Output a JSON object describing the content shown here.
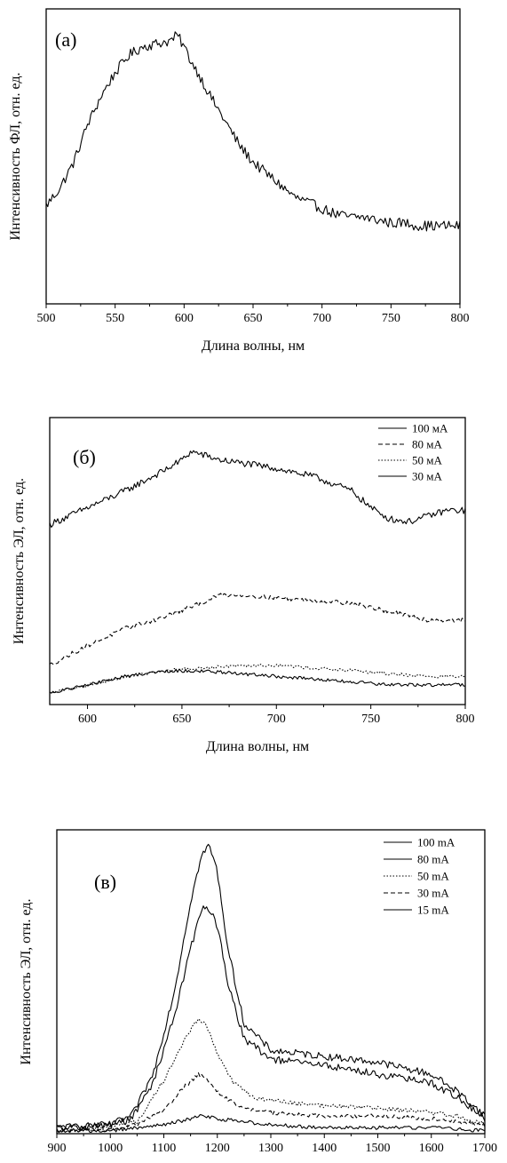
{
  "chart_data": [
    {
      "type": "line",
      "panel_label": "(а)",
      "xlabel": "Длина волны, нм",
      "ylabel": "Интенсивность ФЛ, отн. ед.",
      "xlim": [
        500,
        800
      ],
      "ylim": [
        0,
        1.0
      ],
      "xticks": [
        500,
        550,
        600,
        650,
        700,
        750,
        800
      ],
      "grid": false,
      "legend": "none",
      "series": [
        {
          "style": "solid",
          "noise": 0.018,
          "x": [
            500,
            510,
            520,
            530,
            540,
            550,
            560,
            570,
            580,
            590,
            595,
            600,
            605,
            610,
            620,
            630,
            640,
            650,
            660,
            670,
            680,
            690,
            700,
            710,
            720,
            730,
            740,
            750,
            760,
            770,
            780,
            790,
            800
          ],
          "values": [
            0.34,
            0.4,
            0.49,
            0.62,
            0.72,
            0.8,
            0.86,
            0.89,
            0.9,
            0.91,
            0.93,
            0.89,
            0.84,
            0.8,
            0.71,
            0.63,
            0.55,
            0.49,
            0.45,
            0.41,
            0.37,
            0.35,
            0.33,
            0.31,
            0.3,
            0.3,
            0.29,
            0.28,
            0.28,
            0.27,
            0.27,
            0.27,
            0.27
          ]
        }
      ]
    },
    {
      "type": "line",
      "panel_label": "(б)",
      "xlabel": "Длина волны, нм",
      "ylabel": "Интенсивность ЭЛ, отн. ед.",
      "xlim": [
        580,
        800
      ],
      "ylim": [
        0,
        1.0
      ],
      "xticks": [
        600,
        650,
        700,
        750,
        800
      ],
      "grid": false,
      "legend": "top-right",
      "series": [
        {
          "name": "100 мА",
          "style": "solid",
          "noise": 0.012,
          "x": [
            580,
            600,
            620,
            640,
            650,
            655,
            660,
            670,
            680,
            700,
            720,
            740,
            750,
            760,
            770,
            780,
            790,
            800
          ],
          "values": [
            0.64,
            0.7,
            0.76,
            0.83,
            0.87,
            0.9,
            0.89,
            0.87,
            0.86,
            0.84,
            0.81,
            0.76,
            0.7,
            0.66,
            0.65,
            0.67,
            0.69,
            0.69
          ]
        },
        {
          "name": "80 мА",
          "style": "dashed",
          "noise": 0.008,
          "x": [
            580,
            600,
            620,
            640,
            660,
            670,
            680,
            700,
            720,
            740,
            760,
            780,
            800
          ],
          "values": [
            0.14,
            0.21,
            0.27,
            0.31,
            0.36,
            0.39,
            0.39,
            0.38,
            0.37,
            0.36,
            0.33,
            0.3,
            0.3
          ]
        },
        {
          "name": "50 мА",
          "style": "dotted",
          "noise": 0.006,
          "x": [
            580,
            600,
            620,
            640,
            660,
            680,
            700,
            720,
            740,
            760,
            780,
            800
          ],
          "values": [
            0.04,
            0.07,
            0.1,
            0.12,
            0.13,
            0.14,
            0.14,
            0.13,
            0.12,
            0.11,
            0.1,
            0.1
          ]
        },
        {
          "name": "30 мА",
          "style": "solid",
          "noise": 0.006,
          "x": [
            580,
            600,
            620,
            640,
            660,
            680,
            700,
            720,
            740,
            760,
            780,
            800
          ],
          "values": [
            0.04,
            0.07,
            0.1,
            0.12,
            0.12,
            0.11,
            0.1,
            0.09,
            0.08,
            0.07,
            0.07,
            0.07
          ]
        }
      ]
    },
    {
      "type": "line",
      "panel_label": "(в)",
      "xlabel": "Длина волны, нм",
      "ylabel": "Интенсивность ЭЛ, отн. ед.",
      "xlim": [
        900,
        1700
      ],
      "ylim": [
        0,
        1.0
      ],
      "xticks": [
        900,
        1000,
        1100,
        1200,
        1300,
        1400,
        1500,
        1600,
        1700
      ],
      "grid": false,
      "legend": "top-right",
      "series": [
        {
          "name": "100 mA",
          "style": "solid",
          "noise": 0.012,
          "x": [
            900,
            1000,
            1040,
            1080,
            1120,
            1150,
            1170,
            1185,
            1200,
            1220,
            1250,
            1300,
            1400,
            1500,
            1600,
            1650,
            1700
          ],
          "values": [
            0.02,
            0.03,
            0.06,
            0.2,
            0.48,
            0.78,
            0.93,
            0.97,
            0.88,
            0.62,
            0.37,
            0.28,
            0.26,
            0.24,
            0.2,
            0.14,
            0.06
          ]
        },
        {
          "name": "80 mA",
          "style": "solid",
          "noise": 0.012,
          "x": [
            900,
            1000,
            1040,
            1080,
            1120,
            1150,
            1170,
            1180,
            1200,
            1220,
            1250,
            1300,
            1400,
            1500,
            1600,
            1650,
            1700
          ],
          "values": [
            0.02,
            0.03,
            0.05,
            0.17,
            0.4,
            0.62,
            0.75,
            0.77,
            0.7,
            0.5,
            0.32,
            0.25,
            0.23,
            0.2,
            0.17,
            0.12,
            0.05
          ]
        },
        {
          "name": "50 mA",
          "style": "dotted",
          "noise": 0.008,
          "x": [
            900,
            1000,
            1050,
            1100,
            1140,
            1165,
            1180,
            1200,
            1230,
            1270,
            1350,
            1450,
            1550,
            1650,
            1700
          ],
          "values": [
            0.01,
            0.02,
            0.04,
            0.18,
            0.32,
            0.39,
            0.36,
            0.27,
            0.17,
            0.12,
            0.1,
            0.09,
            0.08,
            0.06,
            0.03
          ]
        },
        {
          "name": "30 mA",
          "style": "dashed",
          "noise": 0.007,
          "x": [
            900,
            1000,
            1050,
            1100,
            1140,
            1165,
            1180,
            1200,
            1240,
            1300,
            1400,
            1500,
            1600,
            1700
          ],
          "values": [
            0.01,
            0.015,
            0.03,
            0.08,
            0.16,
            0.2,
            0.18,
            0.14,
            0.09,
            0.07,
            0.06,
            0.06,
            0.05,
            0.03
          ]
        },
        {
          "name": "15 mA",
          "style": "solid",
          "noise": 0.006,
          "x": [
            900,
            1000,
            1100,
            1150,
            1170,
            1200,
            1300,
            1400,
            1500,
            1600,
            1700
          ],
          "values": [
            0.01,
            0.01,
            0.03,
            0.05,
            0.06,
            0.05,
            0.03,
            0.02,
            0.02,
            0.02,
            0.01
          ]
        }
      ]
    }
  ]
}
